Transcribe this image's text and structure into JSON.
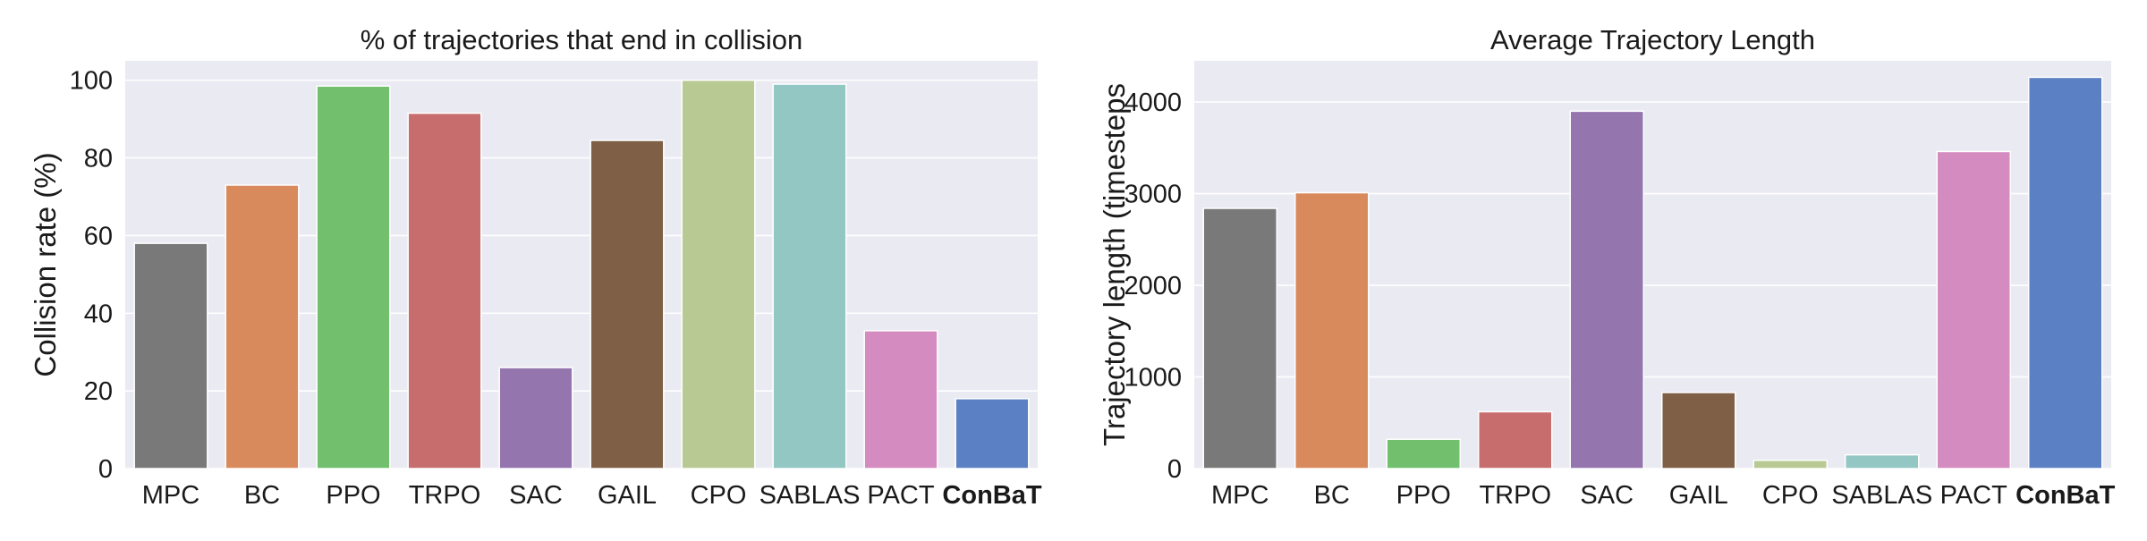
{
  "chart_data": [
    {
      "type": "bar",
      "title": "% of trajectories that end in collision",
      "xlabel": "",
      "ylabel": "Collision rate (%)",
      "ylim": [
        0,
        105
      ],
      "yticks": [
        0,
        20,
        40,
        60,
        80,
        100
      ],
      "grid": true,
      "categories": [
        "MPC",
        "BC",
        "PPO",
        "TRPO",
        "SAC",
        "GAIL",
        "CPO",
        "SABLAS",
        "PACT",
        "ConBaT"
      ],
      "bold_categories": [
        "ConBaT"
      ],
      "values": [
        58,
        73,
        98.5,
        91.5,
        26,
        84.5,
        100,
        99,
        35.5,
        18
      ],
      "colors": [
        "#797979",
        "#d98a5c",
        "#72c06d",
        "#c86d6e",
        "#9575ad",
        "#7f6046",
        "#b8c993",
        "#92c7c3",
        "#d48bbf",
        "#5b80c4"
      ]
    },
    {
      "type": "bar",
      "title": "Average Trajectory Length",
      "xlabel": "",
      "ylabel": "Trajectory length (timesteps",
      "ylim": [
        0,
        4450
      ],
      "yticks": [
        0,
        1000,
        2000,
        3000,
        4000
      ],
      "grid": true,
      "categories": [
        "MPC",
        "BC",
        "PPO",
        "TRPO",
        "SAC",
        "GAIL",
        "CPO",
        "SABLAS",
        "PACT",
        "ConBaT"
      ],
      "bold_categories": [
        "ConBaT"
      ],
      "values": [
        2840,
        3010,
        320,
        620,
        3900,
        830,
        90,
        150,
        3460,
        4270
      ],
      "colors": [
        "#797979",
        "#d98a5c",
        "#72c06d",
        "#c86d6e",
        "#9575ad",
        "#7f6046",
        "#b8c993",
        "#92c7c3",
        "#d48bbf",
        "#5b80c4"
      ]
    }
  ]
}
